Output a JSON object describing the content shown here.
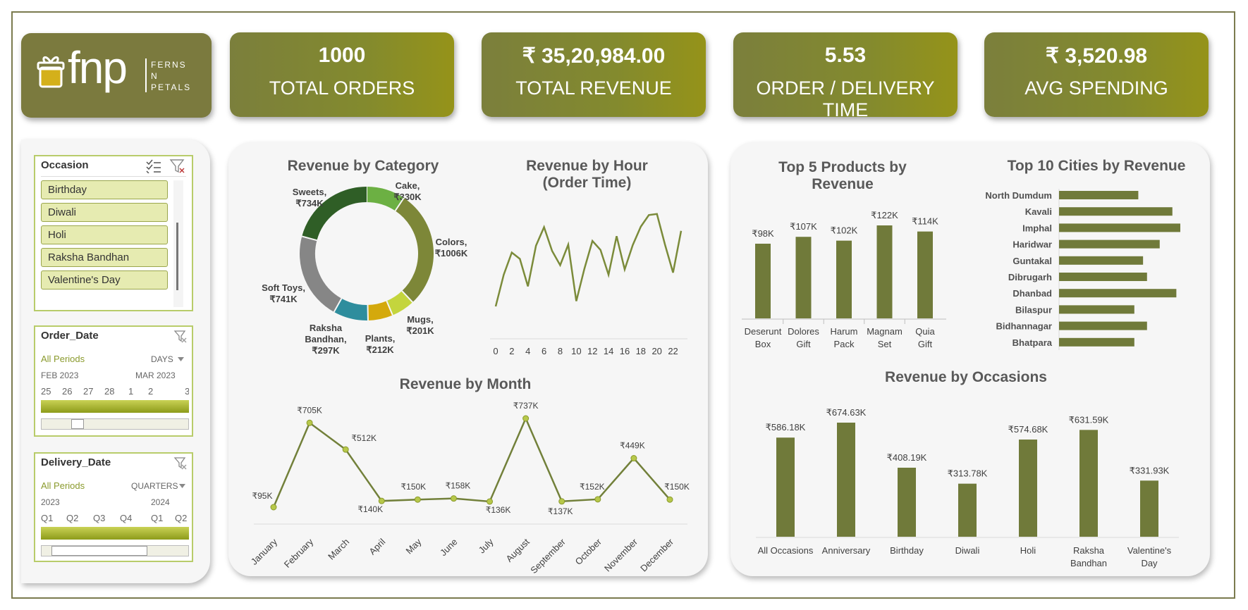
{
  "kpis": [
    {
      "value": "1000",
      "label": "TOTAL ORDERS"
    },
    {
      "value": "₹ 35,20,984.00",
      "label": "TOTAL REVENUE"
    },
    {
      "value": "5.53",
      "label": "ORDER / DELIVERY TIME"
    },
    {
      "value": "₹ 3,520.98",
      "label": "AVG SPENDING"
    }
  ],
  "logo": {
    "brand": "fnp",
    "sub1": "FERNS",
    "sub2": "N",
    "sub3": "PETALS"
  },
  "slicers": {
    "occasion": {
      "title": "Occasion",
      "items": [
        "Birthday",
        "Diwali",
        "Holi",
        "Raksha Bandhan",
        "Valentine's Day"
      ]
    },
    "order_date": {
      "title": "Order_Date",
      "period": "All Periods",
      "unit": "DAYS",
      "month1": "FEB 2023",
      "month2": "MAR 2023",
      "days": [
        "25",
        "26",
        "27",
        "28",
        "1",
        "2",
        "3"
      ]
    },
    "delivery_date": {
      "title": "Delivery_Date",
      "period": "All Periods",
      "unit": "QUARTERS",
      "year1": "2023",
      "year2": "2024",
      "quarters": [
        "Q1",
        "Q2",
        "Q3",
        "Q4",
        "Q1",
        "Q2"
      ]
    }
  },
  "colors": {
    "olive": "#707a3a",
    "kpi": "#838a2e",
    "slicer_border": "#b8cc6a"
  },
  "chart_data": [
    {
      "type": "pie",
      "title": "Revenue by Category",
      "categories": [
        "Cake",
        "Colors",
        "Mugs",
        "Plants",
        "Raksha Bandhan",
        "Soft Toys",
        "Sweets"
      ],
      "labels": [
        "Cake, ₹330K",
        "Colors, ₹1006K",
        "Mugs, ₹201K",
        "Plants, ₹212K",
        "Raksha Bandhan, ₹297K",
        "Soft Toys, ₹741K",
        "Sweets, ₹734K"
      ],
      "values": [
        330,
        1006,
        201,
        212,
        297,
        741,
        734
      ],
      "colors": [
        "#6cb043",
        "#7d8738",
        "#c4d53d",
        "#d4a90c",
        "#2e8d9d",
        "#868686",
        "#2f5e26"
      ]
    },
    {
      "type": "line",
      "title": "Revenue by Hour (Order Time)",
      "x": [
        0,
        1,
        2,
        3,
        4,
        5,
        6,
        7,
        8,
        9,
        10,
        11,
        12,
        13,
        14,
        15,
        16,
        17,
        18,
        19,
        20,
        21,
        22,
        23
      ],
      "xticks": [
        "0",
        "2",
        "4",
        "6",
        "8",
        "10",
        "12",
        "14",
        "16",
        "18",
        "20",
        "22"
      ],
      "values": [
        60,
        120,
        162,
        150,
        98,
        175,
        210,
        165,
        138,
        177,
        70,
        131,
        184,
        167,
        120,
        193,
        130,
        176,
        211,
        233,
        235,
        177,
        124,
        203
      ]
    },
    {
      "type": "line",
      "title": "Revenue by Month",
      "categories": [
        "January",
        "February",
        "March",
        "April",
        "May",
        "June",
        "July",
        "August",
        "September",
        "October",
        "November",
        "December"
      ],
      "values": [
        95,
        705,
        512,
        140,
        150,
        158,
        136,
        737,
        137,
        152,
        449,
        150
      ],
      "labels": [
        "₹95K",
        "₹705K",
        "₹512K",
        "₹140K",
        "₹150K",
        "₹158K",
        "₹136K",
        "₹737K",
        "₹137K",
        "₹152K",
        "₹449K",
        "₹150K"
      ]
    },
    {
      "type": "bar",
      "title": "Top 5 Products by Revenue",
      "categories": [
        "Deserunt Box",
        "Dolores Gift",
        "Harum Pack",
        "Magnam Set",
        "Quia Gift"
      ],
      "values": [
        98,
        107,
        102,
        122,
        114
      ],
      "labels": [
        "₹98K",
        "₹107K",
        "₹102K",
        "₹122K",
        "₹114K"
      ]
    },
    {
      "type": "bar",
      "orientation": "horizontal",
      "title": "Top 10 Cities by Revenue",
      "categories": [
        "North Dumdum",
        "Kavali",
        "Imphal",
        "Haridwar",
        "Guntakal",
        "Dibrugarh",
        "Dhanbad",
        "Bilaspur",
        "Bidhannagar",
        "Bhatpara"
      ],
      "values": [
        100,
        143,
        153,
        127,
        106,
        111,
        148,
        95,
        111,
        95
      ]
    },
    {
      "type": "bar",
      "title": "Revenue by Occasions",
      "categories": [
        "All Occasions",
        "Anniversary",
        "Birthday",
        "Diwali",
        "Holi",
        "Raksha Bandhan",
        "Valentine's Day"
      ],
      "values": [
        586.18,
        674.63,
        408.19,
        313.78,
        574.68,
        631.59,
        331.93
      ],
      "labels": [
        "₹586.18K",
        "₹674.63K",
        "₹408.19K",
        "₹313.78K",
        "₹574.68K",
        "₹631.59K",
        "₹331.93K"
      ]
    }
  ]
}
